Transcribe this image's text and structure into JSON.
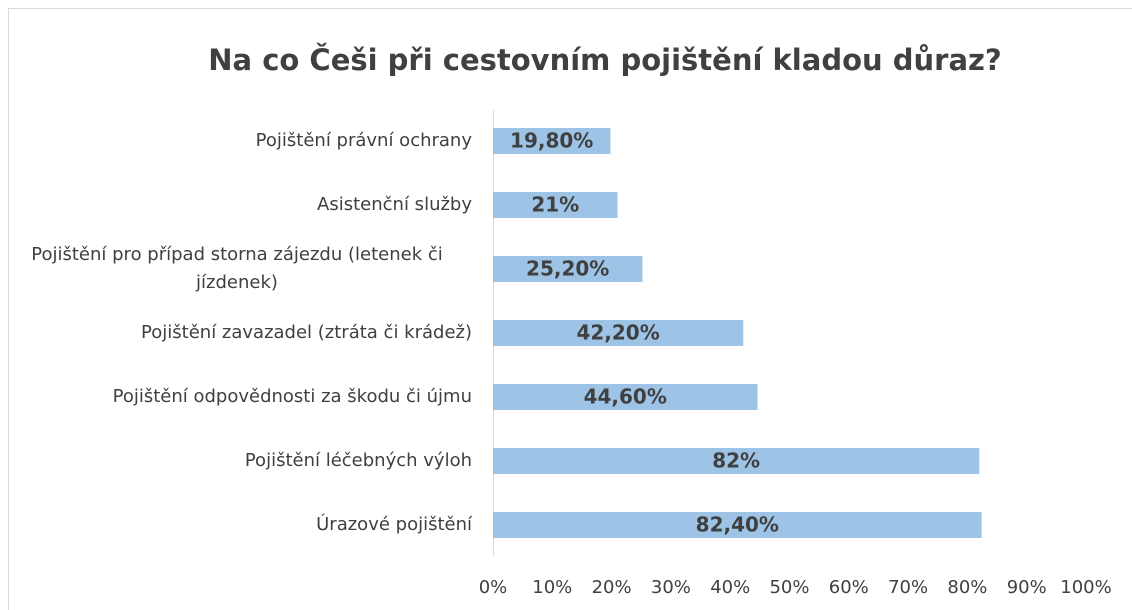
{
  "chart_data": {
    "type": "hbar",
    "title": "Na co Češi při cestovním pojištění kladou důraz?",
    "categories": [
      "Pojištění právní ochrany",
      "Asistenční služby",
      "Pojištění pro případ storna zájezdu (letenek či jízdenek)",
      "Pojištění zavazadel (ztráta či krádež)",
      "Pojištění odpovědnosti za škodu či újmu",
      "Pojištění léčebných výloh",
      "Úrazové pojištění"
    ],
    "values": [
      19.8,
      21,
      25.2,
      42.2,
      44.6,
      82,
      82.4
    ],
    "value_labels": [
      "19,80%",
      "21%",
      "25,20%",
      "42,20%",
      "44,60%",
      "82%",
      "82,40%"
    ],
    "color": "#9dc3e6",
    "xlim": [
      0,
      100
    ],
    "xticks": [
      {
        "value": 0,
        "label": "0%"
      },
      {
        "value": 10,
        "label": "10%"
      },
      {
        "value": 20,
        "label": "20%"
      },
      {
        "value": 30,
        "label": "30%"
      },
      {
        "value": 40,
        "label": "40%"
      },
      {
        "value": 50,
        "label": "50%"
      },
      {
        "value": 60,
        "label": "60%"
      },
      {
        "value": 70,
        "label": "70%"
      },
      {
        "value": 80,
        "label": "80%"
      },
      {
        "value": 90,
        "label": "90%"
      },
      {
        "value": 100,
        "label": "100%"
      }
    ]
  }
}
